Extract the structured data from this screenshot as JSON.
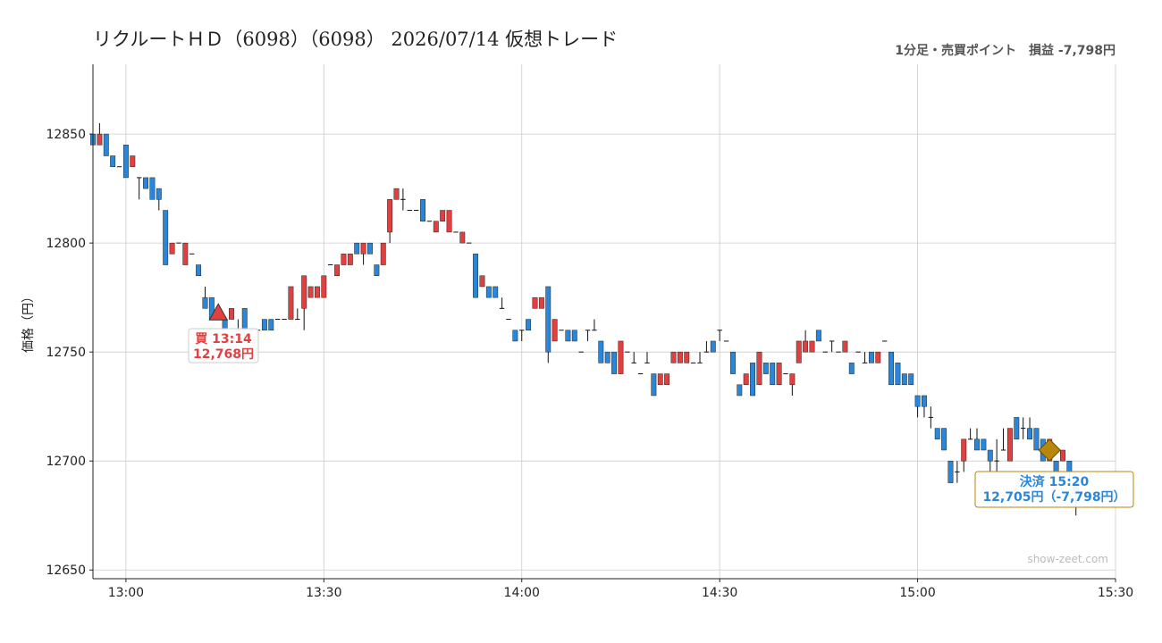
{
  "title": "リクルートＨＤ（6098）（6098） 2026/07/14 仮想トレード",
  "subtitle": "1分足・売買ポイント　損益 -7,798円",
  "watermark": "show-zeet.com",
  "colors": {
    "up": "#e04040",
    "down": "#2a86d8",
    "wick": "#111111",
    "grid": "#cccccc",
    "buy": "#e04040",
    "sell": "#2a86d8",
    "sell_marker": "#b8860b"
  },
  "chart_data": {
    "type": "candlestick",
    "title": "リクルートＨＤ（6098）（6098） 2026/07/14 仮想トレード",
    "ylabel": "価格（円）",
    "xlabel": "",
    "ylim": [
      12646,
      12882
    ],
    "xlim": [
      "12:55",
      "15:30"
    ],
    "x_ticks": [
      "13:00",
      "13:30",
      "14:00",
      "14:30",
      "15:00",
      "15:30"
    ],
    "y_ticks": [
      12650,
      12700,
      12750,
      12800,
      12850
    ],
    "grid": true,
    "candles": [
      [
        "12:55",
        12850,
        12850,
        12845,
        12845
      ],
      [
        "12:56",
        12845,
        12855,
        12845,
        12850
      ],
      [
        "12:57",
        12850,
        12850,
        12840,
        12840
      ],
      [
        "12:58",
        12840,
        12840,
        12835,
        12835
      ],
      [
        "12:59",
        12835,
        12835,
        12835,
        12835
      ],
      [
        "13:00",
        12845,
        12845,
        12830,
        12830
      ],
      [
        "13:01",
        12835,
        12840,
        12835,
        12840
      ],
      [
        "13:02",
        12830,
        12830,
        12820,
        12830
      ],
      [
        "13:03",
        12830,
        12830,
        12825,
        12825
      ],
      [
        "13:04",
        12830,
        12830,
        12820,
        12820
      ],
      [
        "13:05",
        12825,
        12825,
        12815,
        12820
      ],
      [
        "13:06",
        12815,
        12815,
        12790,
        12790
      ],
      [
        "13:07",
        12795,
        12800,
        12795,
        12800
      ],
      [
        "13:08",
        12800,
        12800,
        12800,
        12800
      ],
      [
        "13:09",
        12790,
        12800,
        12790,
        12800
      ],
      [
        "13:10",
        12795,
        12795,
        12795,
        12795
      ],
      [
        "13:11",
        12790,
        12790,
        12785,
        12785
      ],
      [
        "13:12",
        12775,
        12780,
        12770,
        12770
      ],
      [
        "13:13",
        12775,
        12775,
        12765,
        12765
      ],
      [
        "13:14",
        12770,
        12770,
        12765,
        12765
      ],
      [
        "13:15",
        12765,
        12765,
        12760,
        12760
      ],
      [
        "13:16",
        12765,
        12770,
        12765,
        12770
      ],
      [
        "13:17",
        12760,
        12765,
        12760,
        12760
      ],
      [
        "13:18",
        12770,
        12770,
        12760,
        12760
      ],
      [
        "13:19",
        12760,
        12760,
        12760,
        12760
      ],
      [
        "13:20",
        12760,
        12760,
        12760,
        12760
      ],
      [
        "13:21",
        12765,
        12765,
        12760,
        12760
      ],
      [
        "13:22",
        12765,
        12765,
        12760,
        12760
      ],
      [
        "13:23",
        12765,
        12765,
        12765,
        12765
      ],
      [
        "13:24",
        12765,
        12765,
        12765,
        12765
      ],
      [
        "13:25",
        12765,
        12780,
        12765,
        12780
      ],
      [
        "13:26",
        12765,
        12770,
        12765,
        12765
      ],
      [
        "13:27",
        12770,
        12785,
        12760,
        12785
      ],
      [
        "13:28",
        12775,
        12780,
        12775,
        12780
      ],
      [
        "13:29",
        12775,
        12780,
        12775,
        12780
      ],
      [
        "13:30",
        12775,
        12785,
        12775,
        12785
      ],
      [
        "13:31",
        12790,
        12790,
        12790,
        12790
      ],
      [
        "13:32",
        12785,
        12790,
        12785,
        12790
      ],
      [
        "13:33",
        12790,
        12795,
        12790,
        12795
      ],
      [
        "13:34",
        12790,
        12795,
        12790,
        12795
      ],
      [
        "13:35",
        12800,
        12800,
        12795,
        12795
      ],
      [
        "13:36",
        12795,
        12800,
        12790,
        12800
      ],
      [
        "13:37",
        12800,
        12800,
        12795,
        12795
      ],
      [
        "13:38",
        12790,
        12790,
        12785,
        12785
      ],
      [
        "13:39",
        12790,
        12800,
        12790,
        12800
      ],
      [
        "13:40",
        12805,
        12820,
        12800,
        12820
      ],
      [
        "13:41",
        12820,
        12825,
        12820,
        12825
      ],
      [
        "13:42",
        12820,
        12825,
        12815,
        12820
      ],
      [
        "13:43",
        12815,
        12815,
        12815,
        12815
      ],
      [
        "13:44",
        12815,
        12815,
        12815,
        12815
      ],
      [
        "13:45",
        12820,
        12820,
        12810,
        12810
      ],
      [
        "13:46",
        12810,
        12810,
        12810,
        12810
      ],
      [
        "13:47",
        12805,
        12810,
        12805,
        12810
      ],
      [
        "13:48",
        12810,
        12815,
        12810,
        12815
      ],
      [
        "13:49",
        12805,
        12815,
        12805,
        12815
      ],
      [
        "13:50",
        12805,
        12805,
        12805,
        12805
      ],
      [
        "13:51",
        12800,
        12805,
        12800,
        12805
      ],
      [
        "13:52",
        12800,
        12800,
        12800,
        12800
      ],
      [
        "13:53",
        12795,
        12795,
        12775,
        12775
      ],
      [
        "13:54",
        12780,
        12785,
        12780,
        12785
      ],
      [
        "13:55",
        12780,
        12780,
        12775,
        12775
      ],
      [
        "13:56",
        12780,
        12780,
        12775,
        12775
      ],
      [
        "13:57",
        12770,
        12775,
        12770,
        12770
      ],
      [
        "13:58",
        12765,
        12765,
        12765,
        12765
      ],
      [
        "13:59",
        12760,
        12760,
        12755,
        12755
      ],
      [
        "14:00",
        12760,
        12760,
        12755,
        12760
      ],
      [
        "14:01",
        12765,
        12765,
        12760,
        12760
      ],
      [
        "14:02",
        12770,
        12775,
        12770,
        12775
      ],
      [
        "14:03",
        12770,
        12775,
        12770,
        12775
      ],
      [
        "14:04",
        12780,
        12780,
        12745,
        12750
      ],
      [
        "14:05",
        12755,
        12765,
        12755,
        12765
      ],
      [
        "14:06",
        12760,
        12760,
        12760,
        12760
      ],
      [
        "14:07",
        12760,
        12760,
        12755,
        12755
      ],
      [
        "14:08",
        12760,
        12760,
        12755,
        12755
      ],
      [
        "14:09",
        12750,
        12750,
        12750,
        12750
      ],
      [
        "14:10",
        12760,
        12760,
        12755,
        12760
      ],
      [
        "14:11",
        12760,
        12765,
        12760,
        12760
      ],
      [
        "14:12",
        12755,
        12755,
        12745,
        12745
      ],
      [
        "14:13",
        12750,
        12750,
        12745,
        12745
      ],
      [
        "14:14",
        12750,
        12750,
        12740,
        12740
      ],
      [
        "14:15",
        12740,
        12755,
        12740,
        12755
      ],
      [
        "14:16",
        12750,
        12750,
        12750,
        12750
      ],
      [
        "14:17",
        12745,
        12750,
        12745,
        12745
      ],
      [
        "14:18",
        12740,
        12740,
        12740,
        12740
      ],
      [
        "14:19",
        12745,
        12750,
        12745,
        12745
      ],
      [
        "14:20",
        12740,
        12740,
        12730,
        12730
      ],
      [
        "14:21",
        12735,
        12740,
        12735,
        12740
      ],
      [
        "14:22",
        12735,
        12740,
        12735,
        12740
      ],
      [
        "14:23",
        12745,
        12750,
        12745,
        12750
      ],
      [
        "14:24",
        12745,
        12750,
        12745,
        12750
      ],
      [
        "14:25",
        12745,
        12750,
        12745,
        12750
      ],
      [
        "14:26",
        12745,
        12745,
        12745,
        12745
      ],
      [
        "14:27",
        12745,
        12750,
        12745,
        12745
      ],
      [
        "14:28",
        12750,
        12755,
        12750,
        12750
      ],
      [
        "14:29",
        12755,
        12755,
        12750,
        12750
      ],
      [
        "14:30",
        12760,
        12760,
        12755,
        12760
      ],
      [
        "14:31",
        12755,
        12755,
        12755,
        12755
      ],
      [
        "14:32",
        12750,
        12750,
        12740,
        12740
      ],
      [
        "14:33",
        12735,
        12735,
        12730,
        12730
      ],
      [
        "14:34",
        12735,
        12740,
        12735,
        12740
      ],
      [
        "14:35",
        12745,
        12745,
        12730,
        12730
      ],
      [
        "14:36",
        12735,
        12750,
        12735,
        12750
      ],
      [
        "14:37",
        12745,
        12745,
        12740,
        12740
      ],
      [
        "14:38",
        12745,
        12745,
        12735,
        12735
      ],
      [
        "14:39",
        12735,
        12745,
        12735,
        12745
      ],
      [
        "14:40",
        12740,
        12740,
        12740,
        12740
      ],
      [
        "14:41",
        12735,
        12740,
        12730,
        12740
      ],
      [
        "14:42",
        12745,
        12755,
        12745,
        12755
      ],
      [
        "14:43",
        12750,
        12760,
        12750,
        12755
      ],
      [
        "14:44",
        12750,
        12755,
        12750,
        12755
      ],
      [
        "14:45",
        12760,
        12760,
        12755,
        12755
      ],
      [
        "14:46",
        12750,
        12750,
        12750,
        12750
      ],
      [
        "14:47",
        12755,
        12755,
        12750,
        12755
      ],
      [
        "14:48",
        12750,
        12750,
        12750,
        12750
      ],
      [
        "14:49",
        12750,
        12755,
        12750,
        12755
      ],
      [
        "14:50",
        12745,
        12745,
        12740,
        12740
      ],
      [
        "14:51",
        12750,
        12750,
        12750,
        12750
      ],
      [
        "14:52",
        12745,
        12750,
        12745,
        12745
      ],
      [
        "14:53",
        12750,
        12750,
        12745,
        12745
      ],
      [
        "14:54",
        12745,
        12750,
        12745,
        12750
      ],
      [
        "14:55",
        12755,
        12755,
        12755,
        12755
      ],
      [
        "14:56",
        12750,
        12750,
        12735,
        12735
      ],
      [
        "14:57",
        12745,
        12745,
        12735,
        12735
      ],
      [
        "14:58",
        12740,
        12740,
        12735,
        12735
      ],
      [
        "14:59",
        12740,
        12740,
        12735,
        12735
      ],
      [
        "15:00",
        12730,
        12730,
        12720,
        12725
      ],
      [
        "15:01",
        12730,
        12730,
        12720,
        12725
      ],
      [
        "15:02",
        12720,
        12725,
        12715,
        12720
      ],
      [
        "15:03",
        12715,
        12715,
        12710,
        12710
      ],
      [
        "15:04",
        12715,
        12715,
        12705,
        12705
      ],
      [
        "15:05",
        12700,
        12700,
        12690,
        12690
      ],
      [
        "15:06",
        12695,
        12700,
        12690,
        12695
      ],
      [
        "15:07",
        12700,
        12710,
        12695,
        12710
      ],
      [
        "15:08",
        12710,
        12715,
        12710,
        12710
      ],
      [
        "15:09",
        12710,
        12715,
        12705,
        12705
      ],
      [
        "15:10",
        12710,
        12710,
        12705,
        12705
      ],
      [
        "15:11",
        12705,
        12705,
        12695,
        12700
      ],
      [
        "15:12",
        12700,
        12710,
        12695,
        12700
      ],
      [
        "15:13",
        12705,
        12715,
        12705,
        12705
      ],
      [
        "15:14",
        12700,
        12715,
        12700,
        12715
      ],
      [
        "15:15",
        12720,
        12720,
        12710,
        12710
      ],
      [
        "15:16",
        12715,
        12720,
        12710,
        12715
      ],
      [
        "15:17",
        12715,
        12720,
        12710,
        12710
      ],
      [
        "15:18",
        12715,
        12715,
        12705,
        12705
      ],
      [
        "15:19",
        12710,
        12710,
        12700,
        12700
      ],
      [
        "15:20",
        12700,
        12710,
        12700,
        12710
      ],
      [
        "15:21",
        12700,
        12700,
        12695,
        12695
      ],
      [
        "15:22",
        12700,
        12705,
        12700,
        12705
      ],
      [
        "15:23",
        12700,
        12700,
        12690,
        12695
      ],
      [
        "15:24",
        12690,
        12690,
        12675,
        12685
      ]
    ],
    "annotations": [
      {
        "kind": "buy",
        "time": "13:14",
        "price": 12768,
        "label_line1": "買 13:14",
        "label_line2": "12,768円"
      },
      {
        "kind": "sell",
        "time": "15:20",
        "price": 12705,
        "label_line1": "決済 15:20",
        "label_line2": "12,705円（-7,798円）"
      }
    ]
  }
}
